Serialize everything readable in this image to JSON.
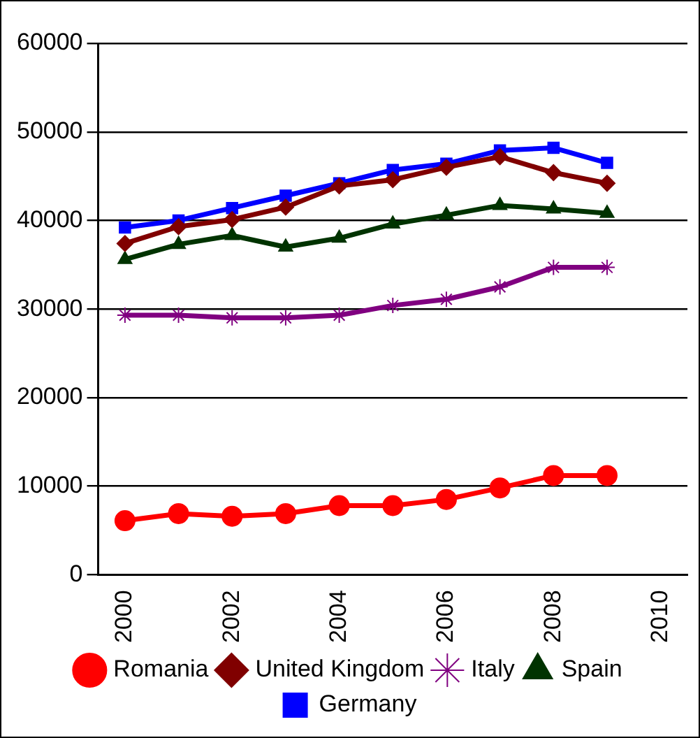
{
  "chart_data": {
    "type": "line",
    "x": [
      2000,
      2001,
      2002,
      2003,
      2004,
      2005,
      2006,
      2007,
      2008,
      2009
    ],
    "xlim": [
      1999.5,
      2010.5
    ],
    "xticks": [
      2000,
      2002,
      2004,
      2006,
      2008,
      2010
    ],
    "ylim": [
      0,
      60000
    ],
    "yticks": [
      0,
      10000,
      20000,
      30000,
      40000,
      50000,
      60000
    ],
    "grid": "y",
    "legend": "bottom",
    "line_style": "solid",
    "series": [
      {
        "name": "Germany",
        "color": "#0000ff",
        "marker": "square",
        "values": [
          39200,
          40000,
          41400,
          42800,
          44200,
          45700,
          46400,
          47900,
          48200,
          46500
        ]
      },
      {
        "name": "Spain",
        "color": "#003300",
        "marker": "triangle",
        "values": [
          35600,
          37300,
          38300,
          37000,
          38000,
          39600,
          40600,
          41700,
          41300,
          40800
        ]
      },
      {
        "name": "Italy",
        "color": "#800080",
        "marker": "cross",
        "values": [
          29300,
          29300,
          29000,
          29000,
          29300,
          30400,
          31100,
          32500,
          34700,
          34700
        ]
      },
      {
        "name": "United Kingdom",
        "color": "#800000",
        "marker": "diamond",
        "values": [
          37400,
          39300,
          40100,
          41500,
          43900,
          44600,
          46000,
          47200,
          45400,
          44200
        ]
      },
      {
        "name": "Romania",
        "color": "#ff0000",
        "marker": "circle",
        "values": [
          6100,
          6900,
          6600,
          6900,
          7800,
          7800,
          8500,
          9800,
          11200,
          11200
        ]
      }
    ]
  }
}
